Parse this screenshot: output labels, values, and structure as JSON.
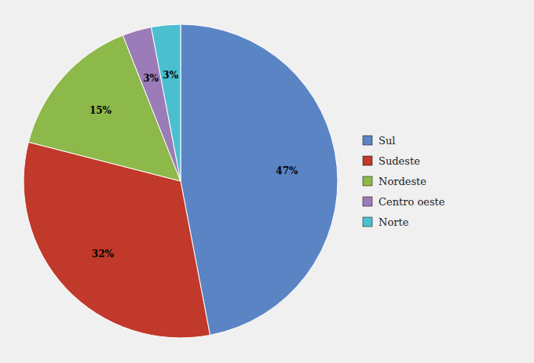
{
  "chart_data": {
    "type": "pie",
    "categories": [
      "Sul",
      "Sudeste",
      "Nordeste",
      "Centro oeste",
      "Norte"
    ],
    "values": [
      47,
      32,
      15,
      3,
      3
    ],
    "value_labels": [
      "47%",
      "32%",
      "15%",
      "3%",
      "3%"
    ],
    "colors": [
      "#5B84C4",
      "#C0392B",
      "#8DB84A",
      "#9B7BB8",
      "#4BBFCF"
    ],
    "data_labels": true,
    "legend": "right"
  }
}
